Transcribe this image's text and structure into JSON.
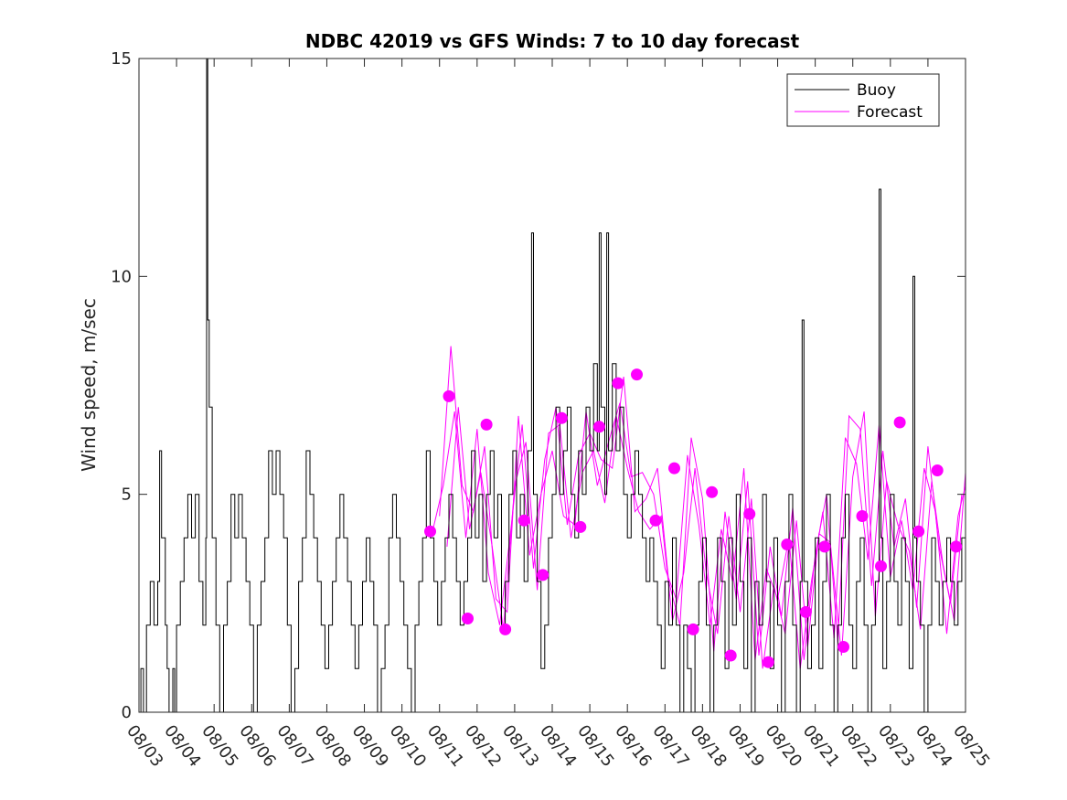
{
  "chart_data": {
    "type": "line",
    "title": "NDBC 42019 vs GFS Winds: 7 to 10 day forecast",
    "xlabel": "",
    "ylabel": "Wind speed, m/sec",
    "xlim": [
      0,
      22
    ],
    "ylim": [
      0,
      15
    ],
    "x_ticks": [
      "08/03",
      "08/04",
      "08/05",
      "08/06",
      "08/07",
      "08/08",
      "08/09",
      "08/10",
      "08/11",
      "08/12",
      "08/13",
      "08/14",
      "08/15",
      "08/16",
      "08/17",
      "08/18",
      "08/19",
      "08/20",
      "08/21",
      "08/22",
      "08/23",
      "08/24",
      "08/25"
    ],
    "y_ticks": [
      0,
      5,
      10,
      15
    ],
    "legend": {
      "position": "top-right",
      "entries": [
        {
          "label": "Buoy",
          "color": "#000000"
        },
        {
          "label": "Forecast",
          "color": "#ff00ff"
        }
      ]
    },
    "colors": {
      "buoy": "#000000",
      "forecast": "#ff00ff"
    },
    "buoy_peaks": [
      {
        "x": 1.8,
        "y": 15
      },
      {
        "x": 10.45,
        "y": 11
      },
      {
        "x": 12.25,
        "y": 11
      },
      {
        "x": 12.45,
        "y": 11
      },
      {
        "x": 17.65,
        "y": 9
      },
      {
        "x": 19.7,
        "y": 12
      },
      {
        "x": 20.6,
        "y": 10
      }
    ],
    "buoy_points": [
      [
        0.0,
        0
      ],
      [
        0.05,
        1
      ],
      [
        0.12,
        0
      ],
      [
        0.2,
        2
      ],
      [
        0.3,
        3
      ],
      [
        0.4,
        2
      ],
      [
        0.5,
        3
      ],
      [
        0.55,
        6
      ],
      [
        0.6,
        4
      ],
      [
        0.7,
        2
      ],
      [
        0.75,
        1
      ],
      [
        0.8,
        0
      ],
      [
        0.9,
        1
      ],
      [
        0.95,
        0
      ],
      [
        1.0,
        2
      ],
      [
        1.1,
        3
      ],
      [
        1.2,
        4
      ],
      [
        1.3,
        5
      ],
      [
        1.4,
        4
      ],
      [
        1.5,
        5
      ],
      [
        1.6,
        3
      ],
      [
        1.7,
        2
      ],
      [
        1.78,
        4
      ],
      [
        1.8,
        15
      ],
      [
        1.83,
        9
      ],
      [
        1.87,
        7
      ],
      [
        1.95,
        4
      ],
      [
        2.05,
        2
      ],
      [
        2.15,
        0
      ],
      [
        2.25,
        2
      ],
      [
        2.35,
        3
      ],
      [
        2.45,
        5
      ],
      [
        2.55,
        4
      ],
      [
        2.65,
        5
      ],
      [
        2.75,
        4
      ],
      [
        2.85,
        3
      ],
      [
        2.95,
        2
      ],
      [
        3.05,
        0
      ],
      [
        3.15,
        2
      ],
      [
        3.25,
        3
      ],
      [
        3.35,
        4
      ],
      [
        3.45,
        6
      ],
      [
        3.55,
        5
      ],
      [
        3.65,
        6
      ],
      [
        3.75,
        5
      ],
      [
        3.85,
        4
      ],
      [
        3.95,
        2
      ],
      [
        4.05,
        0
      ],
      [
        4.15,
        1
      ],
      [
        4.25,
        3
      ],
      [
        4.35,
        4
      ],
      [
        4.45,
        6
      ],
      [
        4.55,
        5
      ],
      [
        4.65,
        4
      ],
      [
        4.75,
        3
      ],
      [
        4.85,
        2
      ],
      [
        4.95,
        1
      ],
      [
        5.05,
        2
      ],
      [
        5.15,
        3
      ],
      [
        5.25,
        4
      ],
      [
        5.35,
        5
      ],
      [
        5.45,
        4
      ],
      [
        5.55,
        3
      ],
      [
        5.65,
        2
      ],
      [
        5.75,
        1
      ],
      [
        5.85,
        2
      ],
      [
        5.95,
        3
      ],
      [
        6.05,
        4
      ],
      [
        6.15,
        3
      ],
      [
        6.25,
        2
      ],
      [
        6.35,
        0
      ],
      [
        6.45,
        1
      ],
      [
        6.55,
        2
      ],
      [
        6.65,
        4
      ],
      [
        6.75,
        5
      ],
      [
        6.85,
        4
      ],
      [
        6.95,
        3
      ],
      [
        7.05,
        2
      ],
      [
        7.15,
        1
      ],
      [
        7.25,
        0
      ],
      [
        7.35,
        2
      ],
      [
        7.45,
        3
      ],
      [
        7.55,
        4
      ],
      [
        7.65,
        6
      ],
      [
        7.75,
        4
      ],
      [
        7.85,
        3
      ],
      [
        7.95,
        2
      ],
      [
        8.05,
        3
      ],
      [
        8.15,
        4
      ],
      [
        8.25,
        5
      ],
      [
        8.35,
        4
      ],
      [
        8.45,
        3
      ],
      [
        8.55,
        2
      ],
      [
        8.65,
        3
      ],
      [
        8.75,
        4
      ],
      [
        8.85,
        6
      ],
      [
        8.95,
        4
      ],
      [
        9.05,
        5
      ],
      [
        9.15,
        3
      ],
      [
        9.25,
        5
      ],
      [
        9.35,
        6
      ],
      [
        9.45,
        4
      ],
      [
        9.55,
        5
      ],
      [
        9.65,
        2
      ],
      [
        9.75,
        3
      ],
      [
        9.85,
        5
      ],
      [
        9.95,
        6
      ],
      [
        10.05,
        4
      ],
      [
        10.15,
        5
      ],
      [
        10.25,
        3
      ],
      [
        10.35,
        6
      ],
      [
        10.45,
        11
      ],
      [
        10.5,
        5
      ],
      [
        10.6,
        3
      ],
      [
        10.7,
        1
      ],
      [
        10.8,
        2
      ],
      [
        10.9,
        4
      ],
      [
        11.0,
        5
      ],
      [
        11.1,
        7
      ],
      [
        11.2,
        5
      ],
      [
        11.3,
        6
      ],
      [
        11.4,
        7
      ],
      [
        11.5,
        5
      ],
      [
        11.6,
        4
      ],
      [
        11.7,
        6
      ],
      [
        11.8,
        5
      ],
      [
        11.9,
        7
      ],
      [
        12.0,
        6
      ],
      [
        12.1,
        8
      ],
      [
        12.2,
        6
      ],
      [
        12.25,
        11
      ],
      [
        12.3,
        7
      ],
      [
        12.4,
        5
      ],
      [
        12.45,
        11
      ],
      [
        12.5,
        6
      ],
      [
        12.6,
        8
      ],
      [
        12.7,
        6
      ],
      [
        12.8,
        7
      ],
      [
        12.9,
        5
      ],
      [
        13.0,
        4
      ],
      [
        13.1,
        5
      ],
      [
        13.2,
        6
      ],
      [
        13.3,
        5
      ],
      [
        13.4,
        4
      ],
      [
        13.5,
        3
      ],
      [
        13.6,
        4
      ],
      [
        13.7,
        3
      ],
      [
        13.8,
        2
      ],
      [
        13.9,
        1
      ],
      [
        14.0,
        3
      ],
      [
        14.1,
        2
      ],
      [
        14.2,
        4
      ],
      [
        14.3,
        2
      ],
      [
        14.4,
        0
      ],
      [
        14.5,
        2
      ],
      [
        14.6,
        1
      ],
      [
        14.7,
        0
      ],
      [
        14.8,
        2
      ],
      [
        14.9,
        3
      ],
      [
        15.0,
        4
      ],
      [
        15.1,
        2
      ],
      [
        15.2,
        0
      ],
      [
        15.3,
        2
      ],
      [
        15.4,
        4
      ],
      [
        15.5,
        3
      ],
      [
        15.6,
        1
      ],
      [
        15.7,
        4
      ],
      [
        15.8,
        2
      ],
      [
        15.9,
        5
      ],
      [
        16.0,
        3
      ],
      [
        16.1,
        1
      ],
      [
        16.2,
        4
      ],
      [
        16.3,
        0
      ],
      [
        16.4,
        3
      ],
      [
        16.5,
        2
      ],
      [
        16.6,
        5
      ],
      [
        16.7,
        3
      ],
      [
        16.8,
        1
      ],
      [
        16.9,
        4
      ],
      [
        17.0,
        2
      ],
      [
        17.1,
        0
      ],
      [
        17.2,
        3
      ],
      [
        17.3,
        5
      ],
      [
        17.4,
        2
      ],
      [
        17.5,
        0
      ],
      [
        17.6,
        3
      ],
      [
        17.65,
        9
      ],
      [
        17.7,
        3
      ],
      [
        17.8,
        1
      ],
      [
        17.9,
        2
      ],
      [
        18.0,
        4
      ],
      [
        18.1,
        1
      ],
      [
        18.2,
        3
      ],
      [
        18.3,
        5
      ],
      [
        18.4,
        2
      ],
      [
        18.5,
        0
      ],
      [
        18.6,
        2
      ],
      [
        18.7,
        4
      ],
      [
        18.8,
        5
      ],
      [
        18.9,
        2
      ],
      [
        19.0,
        1
      ],
      [
        19.1,
        3
      ],
      [
        19.2,
        4
      ],
      [
        19.3,
        2
      ],
      [
        19.4,
        0
      ],
      [
        19.5,
        2
      ],
      [
        19.6,
        3
      ],
      [
        19.7,
        12
      ],
      [
        19.75,
        4
      ],
      [
        19.8,
        1
      ],
      [
        19.9,
        3
      ],
      [
        20.0,
        5
      ],
      [
        20.1,
        3
      ],
      [
        20.2,
        2
      ],
      [
        20.3,
        4
      ],
      [
        20.4,
        3
      ],
      [
        20.5,
        1
      ],
      [
        20.6,
        10
      ],
      [
        20.65,
        4
      ],
      [
        20.7,
        3
      ],
      [
        20.8,
        2
      ],
      [
        20.9,
        0
      ],
      [
        21.0,
        2
      ],
      [
        21.1,
        4
      ],
      [
        21.2,
        3
      ],
      [
        21.3,
        2
      ],
      [
        21.4,
        3
      ],
      [
        21.5,
        4
      ],
      [
        21.6,
        3
      ],
      [
        21.7,
        2
      ],
      [
        21.8,
        3
      ],
      [
        21.9,
        4
      ],
      [
        22.0,
        3
      ]
    ],
    "forecast_lines": [
      [
        [
          7.8,
          4.1
        ],
        [
          8.1,
          5.2
        ],
        [
          8.4,
          6.9
        ],
        [
          8.7,
          4.0
        ],
        [
          9.0,
          6.5
        ],
        [
          9.3,
          3.2
        ],
        [
          9.6,
          2.0
        ],
        [
          9.9,
          4.2
        ],
        [
          10.2,
          6.6
        ],
        [
          10.5,
          3.3
        ],
        [
          10.8,
          5.8
        ],
        [
          11.1,
          7.0
        ],
        [
          11.4,
          4.3
        ],
        [
          11.7,
          5.9
        ],
        [
          12.0,
          6.4
        ],
        [
          12.3,
          5.8
        ],
        [
          12.6,
          5.6
        ],
        [
          12.9,
          7.7
        ],
        [
          13.2,
          4.6
        ],
        [
          13.5,
          4.9
        ],
        [
          13.8,
          5.6
        ],
        [
          14.1,
          3.0
        ],
        [
          14.4,
          2.0
        ],
        [
          14.7,
          6.3
        ],
        [
          15.0,
          4.9
        ],
        [
          15.3,
          1.4
        ],
        [
          15.6,
          4.6
        ],
        [
          15.9,
          2.6
        ],
        [
          16.2,
          5.3
        ],
        [
          16.5,
          1.3
        ],
        [
          16.8,
          3.8
        ],
        [
          17.1,
          2.2
        ],
        [
          17.4,
          4.7
        ],
        [
          17.7,
          1.2
        ],
        [
          18.0,
          3.6
        ],
        [
          18.3,
          5.0
        ],
        [
          18.6,
          1.6
        ],
        [
          18.9,
          6.8
        ],
        [
          19.2,
          6.5
        ],
        [
          19.5,
          2.9
        ],
        [
          19.8,
          6.0
        ],
        [
          20.1,
          3.8
        ],
        [
          20.4,
          4.9
        ],
        [
          20.7,
          2.4
        ],
        [
          21.0,
          6.1
        ],
        [
          21.3,
          3.8
        ],
        [
          21.6,
          2.5
        ],
        [
          21.9,
          5.0
        ]
      ],
      [
        [
          8.0,
          4.5
        ],
        [
          8.3,
          8.4
        ],
        [
          8.6,
          5.2
        ],
        [
          8.9,
          4.6
        ],
        [
          9.2,
          6.1
        ],
        [
          9.5,
          2.6
        ],
        [
          9.8,
          2.3
        ],
        [
          10.1,
          6.8
        ],
        [
          10.4,
          3.6
        ],
        [
          10.7,
          5.0
        ],
        [
          11.0,
          6.0
        ],
        [
          11.3,
          4.5
        ],
        [
          11.6,
          4.3
        ],
        [
          11.9,
          6.9
        ],
        [
          12.2,
          5.2
        ],
        [
          12.5,
          6.2
        ],
        [
          12.8,
          7.1
        ],
        [
          13.1,
          5.4
        ],
        [
          13.4,
          5.5
        ],
        [
          13.7,
          5.0
        ],
        [
          14.0,
          3.3
        ],
        [
          14.3,
          2.6
        ],
        [
          14.6,
          5.9
        ],
        [
          14.9,
          4.3
        ],
        [
          15.2,
          2.0
        ],
        [
          15.5,
          4.2
        ],
        [
          15.8,
          3.0
        ],
        [
          16.1,
          5.6
        ],
        [
          16.4,
          1.2
        ],
        [
          16.7,
          3.3
        ],
        [
          17.0,
          2.6
        ],
        [
          17.3,
          4.0
        ],
        [
          17.6,
          1.0
        ],
        [
          17.9,
          3.0
        ],
        [
          18.2,
          4.6
        ],
        [
          18.5,
          1.7
        ],
        [
          18.8,
          6.3
        ],
        [
          19.1,
          5.7
        ],
        [
          19.4,
          3.5
        ],
        [
          19.7,
          6.6
        ],
        [
          20.0,
          3.1
        ],
        [
          20.3,
          4.4
        ],
        [
          20.6,
          2.8
        ],
        [
          20.9,
          5.6
        ],
        [
          21.2,
          4.6
        ],
        [
          21.5,
          1.8
        ],
        [
          21.8,
          4.5
        ],
        [
          22.0,
          5.2
        ]
      ],
      [
        [
          8.2,
          3.8
        ],
        [
          8.5,
          7.0
        ],
        [
          8.8,
          4.2
        ],
        [
          9.1,
          5.5
        ],
        [
          9.4,
          3.8
        ],
        [
          9.7,
          1.9
        ],
        [
          10.0,
          5.2
        ],
        [
          10.3,
          6.2
        ],
        [
          10.6,
          2.8
        ],
        [
          10.9,
          6.4
        ],
        [
          11.2,
          6.6
        ],
        [
          11.5,
          4.0
        ],
        [
          11.8,
          5.5
        ],
        [
          12.1,
          6.0
        ],
        [
          12.4,
          4.8
        ],
        [
          12.7,
          6.8
        ],
        [
          13.0,
          5.6
        ],
        [
          13.3,
          4.6
        ],
        [
          13.6,
          4.2
        ],
        [
          13.9,
          4.5
        ],
        [
          14.2,
          2.1
        ],
        [
          14.5,
          3.2
        ],
        [
          14.8,
          5.6
        ],
        [
          15.1,
          3.2
        ],
        [
          15.4,
          1.8
        ],
        [
          15.7,
          4.5
        ],
        [
          16.0,
          2.3
        ],
        [
          16.3,
          4.9
        ],
        [
          16.6,
          1.0
        ],
        [
          16.9,
          2.9
        ],
        [
          17.2,
          1.8
        ],
        [
          17.5,
          4.4
        ],
        [
          17.8,
          1.5
        ],
        [
          18.1,
          4.1
        ],
        [
          18.4,
          3.9
        ],
        [
          18.7,
          1.3
        ],
        [
          19.0,
          5.4
        ],
        [
          19.3,
          6.9
        ],
        [
          19.6,
          2.2
        ],
        [
          19.9,
          5.3
        ],
        [
          20.2,
          4.3
        ],
        [
          20.5,
          3.7
        ],
        [
          20.8,
          1.9
        ],
        [
          21.1,
          5.3
        ],
        [
          21.4,
          3.4
        ],
        [
          21.7,
          2.1
        ],
        [
          22.0,
          5.5
        ]
      ]
    ],
    "forecast_markers": [
      {
        "x": 7.75,
        "y": 4.15
      },
      {
        "x": 8.25,
        "y": 7.25
      },
      {
        "x": 8.75,
        "y": 2.15
      },
      {
        "x": 9.25,
        "y": 6.6
      },
      {
        "x": 9.75,
        "y": 1.9
      },
      {
        "x": 10.25,
        "y": 4.4
      },
      {
        "x": 10.75,
        "y": 3.15
      },
      {
        "x": 11.25,
        "y": 6.75
      },
      {
        "x": 11.75,
        "y": 4.25
      },
      {
        "x": 12.25,
        "y": 6.55
      },
      {
        "x": 12.75,
        "y": 7.55
      },
      {
        "x": 13.25,
        "y": 7.75
      },
      {
        "x": 13.75,
        "y": 4.4
      },
      {
        "x": 14.25,
        "y": 5.6
      },
      {
        "x": 14.75,
        "y": 1.9
      },
      {
        "x": 15.25,
        "y": 5.05
      },
      {
        "x": 15.75,
        "y": 1.3
      },
      {
        "x": 16.25,
        "y": 4.55
      },
      {
        "x": 16.75,
        "y": 1.15
      },
      {
        "x": 17.25,
        "y": 3.85
      },
      {
        "x": 17.75,
        "y": 2.3
      },
      {
        "x": 18.25,
        "y": 3.8
      },
      {
        "x": 18.75,
        "y": 1.5
      },
      {
        "x": 19.25,
        "y": 4.5
      },
      {
        "x": 19.75,
        "y": 3.35
      },
      {
        "x": 20.25,
        "y": 6.65
      },
      {
        "x": 20.75,
        "y": 4.15
      },
      {
        "x": 21.25,
        "y": 5.55
      },
      {
        "x": 21.75,
        "y": 3.8
      }
    ]
  }
}
